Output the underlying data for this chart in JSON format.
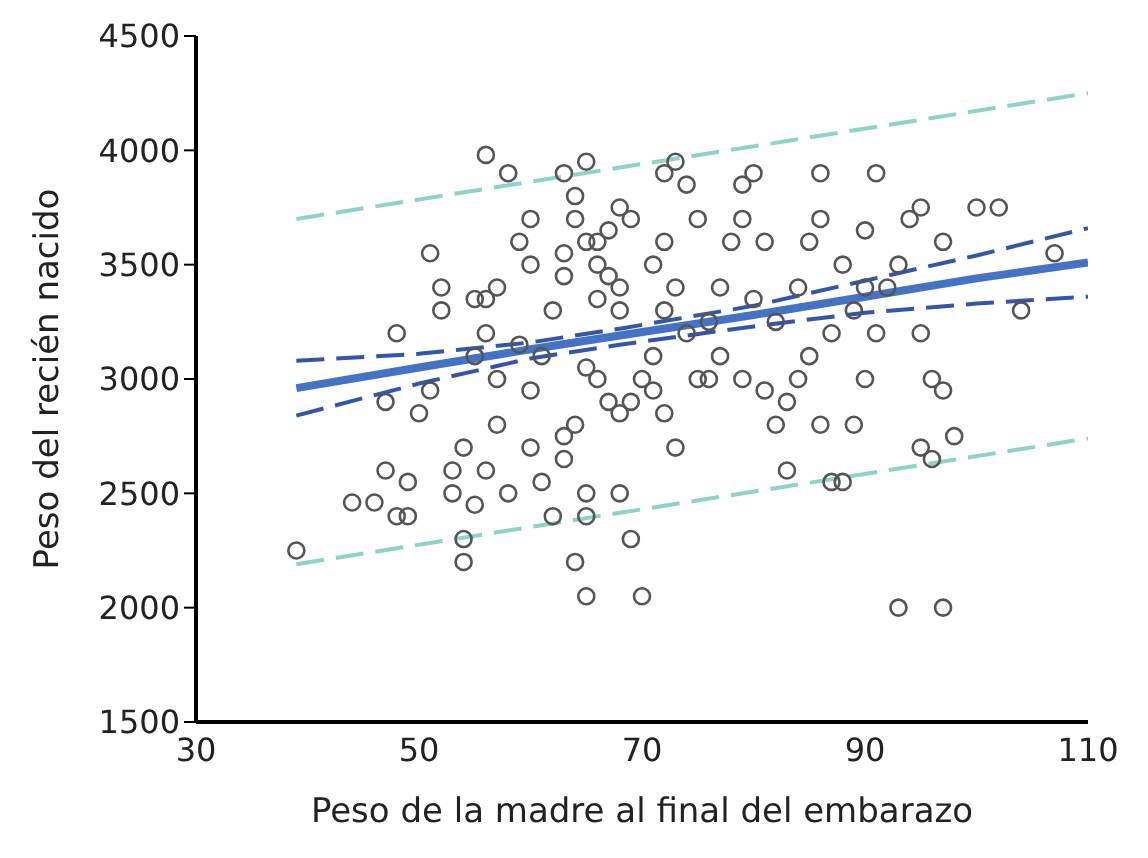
{
  "chart_data": {
    "type": "scatter",
    "xlabel": "Peso de la madre al final del embarazo",
    "ylabel": "Peso del recién nacido",
    "xlim": [
      30,
      110
    ],
    "xticks": [
      30,
      50,
      70,
      90,
      110
    ],
    "ylim": [
      1500,
      4500
    ],
    "yticks": [
      1500,
      2000,
      2500,
      3000,
      3500,
      4000,
      4500
    ],
    "grid": false,
    "legend": false,
    "series": [
      {
        "color": "#555555",
        "marker": "circle",
        "x": [
          39,
          44,
          46,
          47,
          48,
          49,
          49,
          50,
          51,
          47,
          48,
          51,
          53,
          52,
          52,
          54,
          55,
          54,
          54,
          53,
          55,
          55,
          56,
          56,
          57,
          57,
          57,
          56,
          58,
          59,
          58,
          56,
          60,
          60,
          59,
          60,
          61,
          60,
          62,
          61,
          63,
          62,
          63,
          63,
          64,
          63,
          65,
          64,
          65,
          66,
          67,
          68,
          69,
          66,
          67,
          68,
          66,
          68,
          65,
          66,
          67,
          68,
          69,
          64,
          63,
          65,
          65,
          64,
          65,
          68,
          69,
          70,
          71,
          72,
          73,
          72,
          74,
          75,
          73,
          72,
          74,
          71,
          70,
          71,
          72,
          73,
          75,
          76,
          77,
          76,
          77,
          78,
          79,
          80,
          79,
          81,
          80,
          82,
          79,
          81,
          82,
          83,
          84,
          85,
          84,
          85,
          86,
          86,
          83,
          87,
          88,
          86,
          87,
          88,
          89,
          90,
          90,
          89,
          90,
          91,
          92,
          91,
          93,
          94,
          95,
          95,
          96,
          95,
          96,
          98,
          97,
          97,
          100,
          102,
          104,
          93,
          97,
          107
        ],
        "values": [
          2250,
          2460,
          2460,
          2600,
          2400,
          2400,
          2550,
          2850,
          2950,
          2900,
          3200,
          3550,
          2600,
          3300,
          3400,
          2700,
          2450,
          2300,
          2200,
          2500,
          3100,
          3350,
          3350,
          3200,
          3000,
          3400,
          2800,
          2600,
          2500,
          3600,
          3900,
          3980,
          3500,
          3700,
          3150,
          2950,
          3100,
          2700,
          2400,
          2550,
          2650,
          3300,
          3450,
          3550,
          3800,
          3900,
          3950,
          3700,
          3600,
          3600,
          3650,
          3750,
          3700,
          3500,
          3450,
          3400,
          3350,
          3300,
          3050,
          3000,
          2900,
          2850,
          2900,
          2800,
          2750,
          2500,
          2400,
          2200,
          2050,
          2500,
          2300,
          2050,
          3500,
          3600,
          3950,
          3900,
          3850,
          3700,
          3400,
          3300,
          3200,
          3100,
          3000,
          2950,
          2850,
          2700,
          3000,
          3000,
          3100,
          3250,
          3400,
          3600,
          3850,
          3900,
          3700,
          3600,
          3350,
          3250,
          3000,
          2950,
          2800,
          2900,
          3000,
          3100,
          3400,
          3600,
          3700,
          3900,
          2600,
          2550,
          2550,
          2800,
          3200,
          3500,
          3300,
          3400,
          3000,
          2800,
          3650,
          3900,
          3400,
          3200,
          3500,
          3700,
          3750,
          3200,
          3000,
          2700,
          2650,
          2750,
          2950,
          3600,
          3750,
          3750,
          3300,
          2000,
          2000,
          3550
        ]
      },
      {
        "type": "line",
        "color": "#4472c4",
        "line_style": "solid",
        "x": [
          39,
          50,
          60,
          68,
          80,
          90,
          100,
          110
        ],
        "values": [
          2960,
          3050,
          3130,
          3190,
          3280,
          3360,
          3440,
          3510
        ]
      },
      {
        "type": "line",
        "color": "#3355aa",
        "line_style": "dashed",
        "x": [
          39,
          50,
          60,
          68,
          80,
          90,
          100,
          110
        ],
        "values": [
          3080,
          3110,
          3160,
          3220,
          3320,
          3430,
          3540,
          3660
        ]
      },
      {
        "type": "line",
        "color": "#3355aa",
        "line_style": "dashed",
        "x": [
          39,
          50,
          60,
          68,
          80,
          90,
          100,
          110
        ],
        "values": [
          2840,
          2980,
          3090,
          3150,
          3230,
          3290,
          3330,
          3360
        ]
      },
      {
        "type": "line",
        "color": "#8fd3c8",
        "line_style": "dashed",
        "x": [
          39,
          110
        ],
        "values": [
          3700,
          4250
        ]
      },
      {
        "type": "line",
        "color": "#8fd3c8",
        "line_style": "dashed",
        "x": [
          39,
          110
        ],
        "values": [
          2190,
          2740
        ]
      }
    ]
  }
}
